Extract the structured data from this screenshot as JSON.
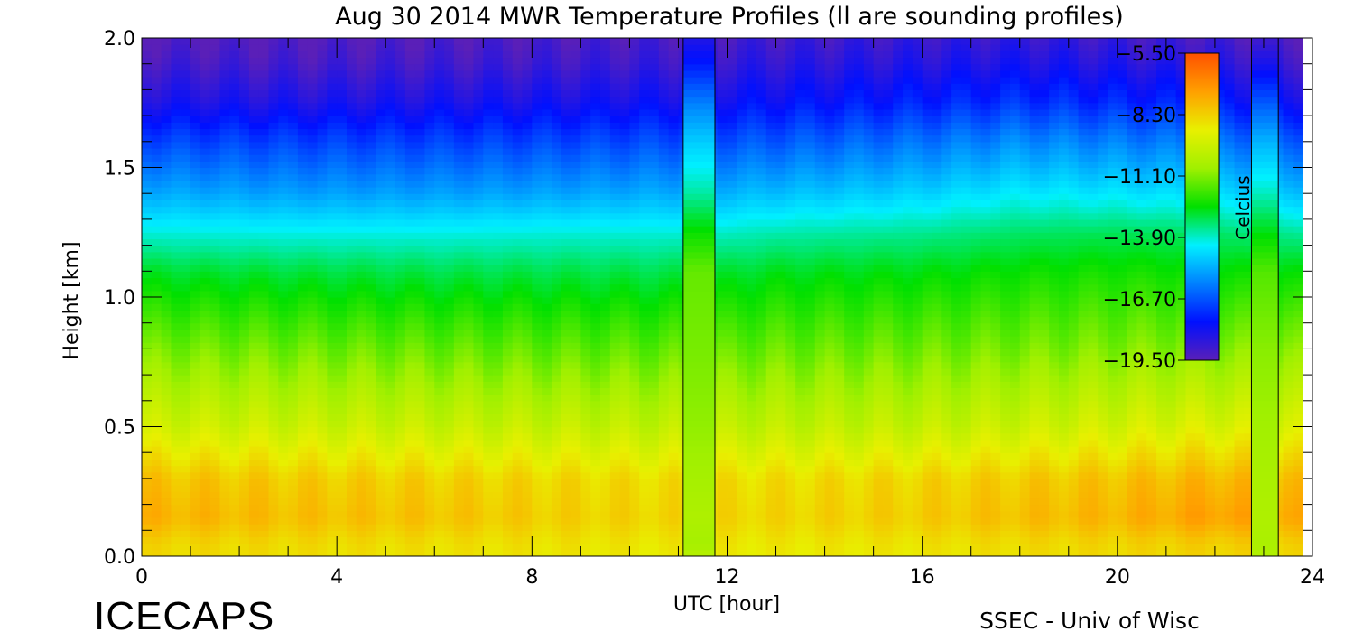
{
  "chart_data": {
    "type": "heatmap",
    "title": "Aug 30 2014 MWR Temperature Profiles (ll are sounding profiles)",
    "xlabel": "UTC [hour]",
    "ylabel": "Height [km]",
    "xlim": [
      0,
      24
    ],
    "ylim": [
      0,
      2
    ],
    "x_ticks": [
      "0",
      "4",
      "8",
      "12",
      "16",
      "20",
      "24"
    ],
    "y_ticks": [
      "0.0",
      "0.5",
      "1.0",
      "1.5",
      "2.0"
    ],
    "colorbar": {
      "label": "Celcius",
      "min": -19.5,
      "max": -5.5,
      "ticks": [
        "-5.50",
        "-8.30",
        "-11.10",
        "-13.90",
        "-16.70",
        "-19.50"
      ],
      "colors": [
        "#5a1fb8",
        "#0010ff",
        "#0080ff",
        "#00f0ff",
        "#00e000",
        "#a0f000",
        "#e8f000",
        "#ffa000",
        "#ff5000"
      ]
    },
    "profile_levels_km": [
      0.0,
      0.05,
      0.15,
      0.3,
      0.5,
      0.8,
      1.1,
      1.25,
      1.4,
      1.6,
      1.75,
      1.9,
      2.0
    ],
    "mwr_profiles": [
      {
        "time_utc": 0,
        "temps_c": [
          -8.5,
          -8.4,
          -7.6,
          -8.0,
          -9.6,
          -11.2,
          -12.8,
          -14.0,
          -15.3,
          -16.9,
          -18.2,
          -19.0,
          -19.4
        ]
      },
      {
        "time_utc": 3,
        "temps_c": [
          -8.6,
          -8.5,
          -7.9,
          -8.2,
          -9.7,
          -11.3,
          -12.9,
          -14.1,
          -15.5,
          -17.0,
          -18.3,
          -19.1,
          -19.4
        ]
      },
      {
        "time_utc": 6,
        "temps_c": [
          -8.7,
          -8.6,
          -8.0,
          -8.3,
          -9.8,
          -11.4,
          -13.0,
          -14.1,
          -15.5,
          -17.0,
          -18.2,
          -19.0,
          -19.3
        ]
      },
      {
        "time_utc": 9,
        "temps_c": [
          -8.8,
          -8.7,
          -8.3,
          -8.5,
          -9.9,
          -11.5,
          -13.0,
          -14.0,
          -15.4,
          -16.9,
          -18.1,
          -18.9,
          -19.2
        ]
      },
      {
        "time_utc": 11,
        "temps_c": [
          -8.9,
          -8.8,
          -8.4,
          -8.6,
          -10.0,
          -11.5,
          -13.0,
          -14.0,
          -15.3,
          -16.8,
          -18.0,
          -18.8,
          -19.1
        ]
      },
      {
        "time_utc": 13,
        "temps_c": [
          -8.9,
          -8.8,
          -8.4,
          -8.6,
          -10.0,
          -11.4,
          -12.7,
          -13.7,
          -15.0,
          -16.6,
          -17.8,
          -18.6,
          -19.0
        ]
      },
      {
        "time_utc": 16,
        "temps_c": [
          -8.8,
          -8.7,
          -8.2,
          -8.4,
          -9.9,
          -11.3,
          -12.6,
          -13.5,
          -14.7,
          -16.2,
          -17.5,
          -18.4,
          -18.8
        ]
      },
      {
        "time_utc": 18,
        "temps_c": [
          -8.6,
          -8.5,
          -7.9,
          -8.2,
          -9.7,
          -11.2,
          -12.4,
          -13.2,
          -14.3,
          -15.8,
          -17.2,
          -18.2,
          -18.7
        ]
      },
      {
        "time_utc": 20,
        "temps_c": [
          -8.5,
          -8.4,
          -7.7,
          -8.0,
          -9.5,
          -11.1,
          -12.3,
          -13.1,
          -14.4,
          -16.0,
          -17.4,
          -18.4,
          -18.9
        ]
      },
      {
        "time_utc": 22,
        "temps_c": [
          -8.4,
          -8.2,
          -7.2,
          -7.7,
          -9.3,
          -11.0,
          -12.4,
          -13.2,
          -14.6,
          -16.2,
          -17.6,
          -18.6,
          -19.1
        ]
      },
      {
        "time_utc": 24,
        "temps_c": [
          -8.5,
          -8.4,
          -7.6,
          -8.0,
          -9.5,
          -11.1,
          -12.6,
          -13.6,
          -15.0,
          -16.6,
          -18.0,
          -18.9,
          -19.3
        ]
      }
    ],
    "sounding_profiles": [
      {
        "t_start": 11.1,
        "t_end": 11.75,
        "temps_c": [
          -10.2,
          -10.6,
          -10.4,
          -10.6,
          -10.9,
          -11.2,
          -11.4,
          -12.4,
          -13.6,
          -14.8,
          -16.0,
          -17.6,
          -18.4
        ]
      },
      {
        "t_start": 22.75,
        "t_end": 23.3,
        "temps_c": [
          -10.3,
          -10.5,
          -10.4,
          -10.5,
          -10.7,
          -11.0,
          -11.6,
          -12.6,
          -13.8,
          -15.2,
          -16.6,
          -18.2,
          -19.0
        ]
      }
    ],
    "data_end_utc": 23.8
  },
  "footer": {
    "left_label": "ICECAPS",
    "right_label": "SSEC - Univ of Wisc"
  }
}
